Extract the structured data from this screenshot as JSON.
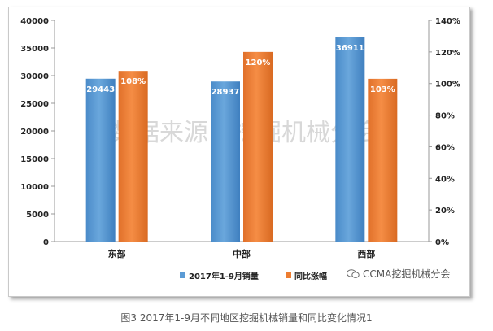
{
  "chart_data": {
    "type": "bar",
    "categories": [
      "东部",
      "中部",
      "西部"
    ],
    "series": [
      {
        "name": "2017年1-9月销量",
        "axis": "left",
        "values": [
          29443,
          28937,
          36911
        ],
        "labels": [
          "29443",
          "28937",
          "36911"
        ],
        "color": "#5b9bd5"
      },
      {
        "name": "同比涨幅",
        "axis": "right",
        "values": [
          108,
          120,
          103
        ],
        "labels": [
          "108%",
          "120%",
          "103%"
        ],
        "color": "#ed7d31"
      }
    ],
    "y_left": {
      "range": [
        0,
        40000
      ],
      "ticks": [
        "0",
        "5000",
        "10000",
        "15000",
        "20000",
        "25000",
        "30000",
        "35000",
        "40000"
      ]
    },
    "y_right": {
      "range": [
        0,
        140
      ],
      "unit": "%",
      "ticks": [
        "0%",
        "20%",
        "40%",
        "60%",
        "80%",
        "100%",
        "120%",
        "140%"
      ]
    },
    "legend_position": "bottom",
    "grid": false
  },
  "watermark_text": "数据来源：挖掘机械分会",
  "logo_text": "CCMA挖掘机械分会",
  "caption": "图3 2017年1-9月不同地区挖掘机械销量和同比变化情况1"
}
